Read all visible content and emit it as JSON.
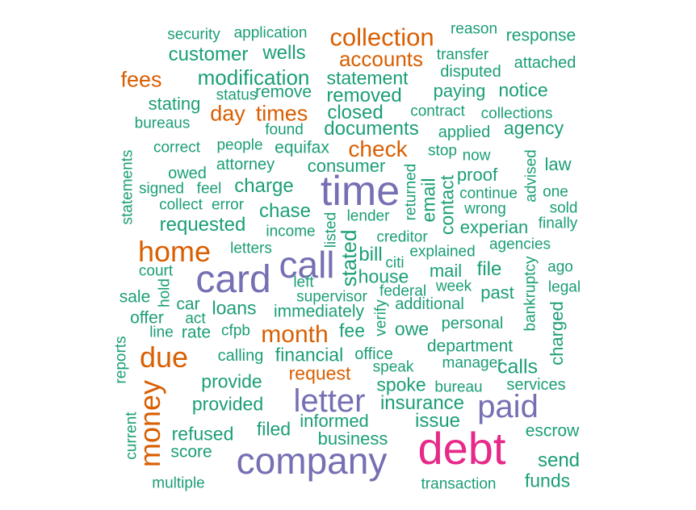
{
  "words": [
    {
      "text": "security",
      "color": "#1b9e77"
    },
    {
      "text": "application",
      "color": "#1b9e77"
    },
    {
      "text": "collection",
      "color": "#d95f02"
    },
    {
      "text": "reason",
      "color": "#1b9e77"
    },
    {
      "text": "response",
      "color": "#1b9e77"
    },
    {
      "text": "customer",
      "color": "#1b9e77"
    },
    {
      "text": "wells",
      "color": "#1b9e77"
    },
    {
      "text": "accounts",
      "color": "#d95f02"
    },
    {
      "text": "transfer",
      "color": "#1b9e77"
    },
    {
      "text": "attached",
      "color": "#1b9e77"
    },
    {
      "text": "fees",
      "color": "#d95f02"
    },
    {
      "text": "modification",
      "color": "#1b9e77"
    },
    {
      "text": "statement",
      "color": "#1b9e77"
    },
    {
      "text": "disputed",
      "color": "#1b9e77"
    },
    {
      "text": "stating",
      "color": "#1b9e77"
    },
    {
      "text": "status",
      "color": "#1b9e77"
    },
    {
      "text": "remove",
      "color": "#1b9e77"
    },
    {
      "text": "removed",
      "color": "#1b9e77"
    },
    {
      "text": "paying",
      "color": "#1b9e77"
    },
    {
      "text": "notice",
      "color": "#1b9e77"
    },
    {
      "text": "bureaus",
      "color": "#1b9e77"
    },
    {
      "text": "day",
      "color": "#d95f02"
    },
    {
      "text": "times",
      "color": "#d95f02"
    },
    {
      "text": "closed",
      "color": "#1b9e77"
    },
    {
      "text": "contract",
      "color": "#1b9e77"
    },
    {
      "text": "collections",
      "color": "#1b9e77"
    },
    {
      "text": "found",
      "color": "#1b9e77"
    },
    {
      "text": "documents",
      "color": "#1b9e77"
    },
    {
      "text": "applied",
      "color": "#1b9e77"
    },
    {
      "text": "agency",
      "color": "#1b9e77"
    },
    {
      "text": "correct",
      "color": "#1b9e77"
    },
    {
      "text": "people",
      "color": "#1b9e77"
    },
    {
      "text": "equifax",
      "color": "#1b9e77"
    },
    {
      "text": "check",
      "color": "#d95f02"
    },
    {
      "text": "stop",
      "color": "#1b9e77"
    },
    {
      "text": "now",
      "color": "#1b9e77"
    },
    {
      "text": "statements",
      "color": "#1b9e77"
    },
    {
      "text": "owed",
      "color": "#1b9e77"
    },
    {
      "text": "attorney",
      "color": "#1b9e77"
    },
    {
      "text": "consumer",
      "color": "#1b9e77"
    },
    {
      "text": "proof",
      "color": "#1b9e77"
    },
    {
      "text": "advised",
      "color": "#1b9e77"
    },
    {
      "text": "law",
      "color": "#1b9e77"
    },
    {
      "text": "signed",
      "color": "#1b9e77"
    },
    {
      "text": "feel",
      "color": "#1b9e77"
    },
    {
      "text": "charge",
      "color": "#1b9e77"
    },
    {
      "text": "time",
      "color": "#7570b3"
    },
    {
      "text": "returned",
      "color": "#1b9e77"
    },
    {
      "text": "email",
      "color": "#1b9e77"
    },
    {
      "text": "contact",
      "color": "#1b9e77"
    },
    {
      "text": "continue",
      "color": "#1b9e77"
    },
    {
      "text": "one",
      "color": "#1b9e77"
    },
    {
      "text": "collect",
      "color": "#1b9e77"
    },
    {
      "text": "error",
      "color": "#1b9e77"
    },
    {
      "text": "chase",
      "color": "#1b9e77"
    },
    {
      "text": "lender",
      "color": "#1b9e77"
    },
    {
      "text": "wrong",
      "color": "#1b9e77"
    },
    {
      "text": "sold",
      "color": "#1b9e77"
    },
    {
      "text": "requested",
      "color": "#1b9e77"
    },
    {
      "text": "listed",
      "color": "#1b9e77"
    },
    {
      "text": "experian",
      "color": "#1b9e77"
    },
    {
      "text": "finally",
      "color": "#1b9e77"
    },
    {
      "text": "income",
      "color": "#1b9e77"
    },
    {
      "text": "creditor",
      "color": "#1b9e77"
    },
    {
      "text": "home",
      "color": "#d95f02"
    },
    {
      "text": "letters",
      "color": "#1b9e77"
    },
    {
      "text": "stated",
      "color": "#1b9e77"
    },
    {
      "text": "bill",
      "color": "#1b9e77"
    },
    {
      "text": "agencies",
      "color": "#1b9e77"
    },
    {
      "text": "call",
      "color": "#7570b3"
    },
    {
      "text": "citi",
      "color": "#1b9e77"
    },
    {
      "text": "explained",
      "color": "#1b9e77"
    },
    {
      "text": "court",
      "color": "#1b9e77"
    },
    {
      "text": "mail",
      "color": "#1b9e77"
    },
    {
      "text": "file",
      "color": "#1b9e77"
    },
    {
      "text": "bankruptcy",
      "color": "#1b9e77"
    },
    {
      "text": "ago",
      "color": "#1b9e77"
    },
    {
      "text": "card",
      "color": "#7570b3"
    },
    {
      "text": "hold",
      "color": "#1b9e77"
    },
    {
      "text": "left",
      "color": "#1b9e77"
    },
    {
      "text": "house",
      "color": "#1b9e77"
    },
    {
      "text": "week",
      "color": "#1b9e77"
    },
    {
      "text": "legal",
      "color": "#1b9e77"
    },
    {
      "text": "sale",
      "color": "#1b9e77"
    },
    {
      "text": "supervisor",
      "color": "#1b9e77"
    },
    {
      "text": "federal",
      "color": "#1b9e77"
    },
    {
      "text": "past",
      "color": "#1b9e77"
    },
    {
      "text": "car",
      "color": "#1b9e77"
    },
    {
      "text": "loans",
      "color": "#1b9e77"
    },
    {
      "text": "additional",
      "color": "#1b9e77"
    },
    {
      "text": "offer",
      "color": "#1b9e77"
    },
    {
      "text": "act",
      "color": "#1b9e77"
    },
    {
      "text": "immediately",
      "color": "#1b9e77"
    },
    {
      "text": "verify",
      "color": "#1b9e77"
    },
    {
      "text": "charged",
      "color": "#1b9e77"
    },
    {
      "text": "personal",
      "color": "#1b9e77"
    },
    {
      "text": "reports",
      "color": "#1b9e77"
    },
    {
      "text": "line",
      "color": "#1b9e77"
    },
    {
      "text": "rate",
      "color": "#1b9e77"
    },
    {
      "text": "cfpb",
      "color": "#1b9e77"
    },
    {
      "text": "month",
      "color": "#d95f02"
    },
    {
      "text": "fee",
      "color": "#1b9e77"
    },
    {
      "text": "owe",
      "color": "#1b9e77"
    },
    {
      "text": "department",
      "color": "#1b9e77"
    },
    {
      "text": "due",
      "color": "#d95f02"
    },
    {
      "text": "calling",
      "color": "#1b9e77"
    },
    {
      "text": "financial",
      "color": "#1b9e77"
    },
    {
      "text": "office",
      "color": "#1b9e77"
    },
    {
      "text": "manager",
      "color": "#1b9e77"
    },
    {
      "text": "calls",
      "color": "#1b9e77"
    },
    {
      "text": "speak",
      "color": "#1b9e77"
    },
    {
      "text": "request",
      "color": "#d95f02"
    },
    {
      "text": "provide",
      "color": "#1b9e77"
    },
    {
      "text": "spoke",
      "color": "#1b9e77"
    },
    {
      "text": "bureau",
      "color": "#1b9e77"
    },
    {
      "text": "services",
      "color": "#1b9e77"
    },
    {
      "text": "money",
      "color": "#d95f02"
    },
    {
      "text": "letter",
      "color": "#7570b3"
    },
    {
      "text": "paid",
      "color": "#7570b3"
    },
    {
      "text": "provided",
      "color": "#1b9e77"
    },
    {
      "text": "insurance",
      "color": "#1b9e77"
    },
    {
      "text": "current",
      "color": "#1b9e77"
    },
    {
      "text": "informed",
      "color": "#1b9e77"
    },
    {
      "text": "issue",
      "color": "#1b9e77"
    },
    {
      "text": "refused",
      "color": "#1b9e77"
    },
    {
      "text": "filed",
      "color": "#1b9e77"
    },
    {
      "text": "escrow",
      "color": "#1b9e77"
    },
    {
      "text": "business",
      "color": "#1b9e77"
    },
    {
      "text": "debt",
      "color": "#e7298a"
    },
    {
      "text": "score",
      "color": "#1b9e77"
    },
    {
      "text": "company",
      "color": "#7570b3"
    },
    {
      "text": "send",
      "color": "#1b9e77"
    },
    {
      "text": "multiple",
      "color": "#1b9e77"
    },
    {
      "text": "funds",
      "color": "#1b9e77"
    },
    {
      "text": "transaction",
      "color": "#1b9e77"
    }
  ]
}
